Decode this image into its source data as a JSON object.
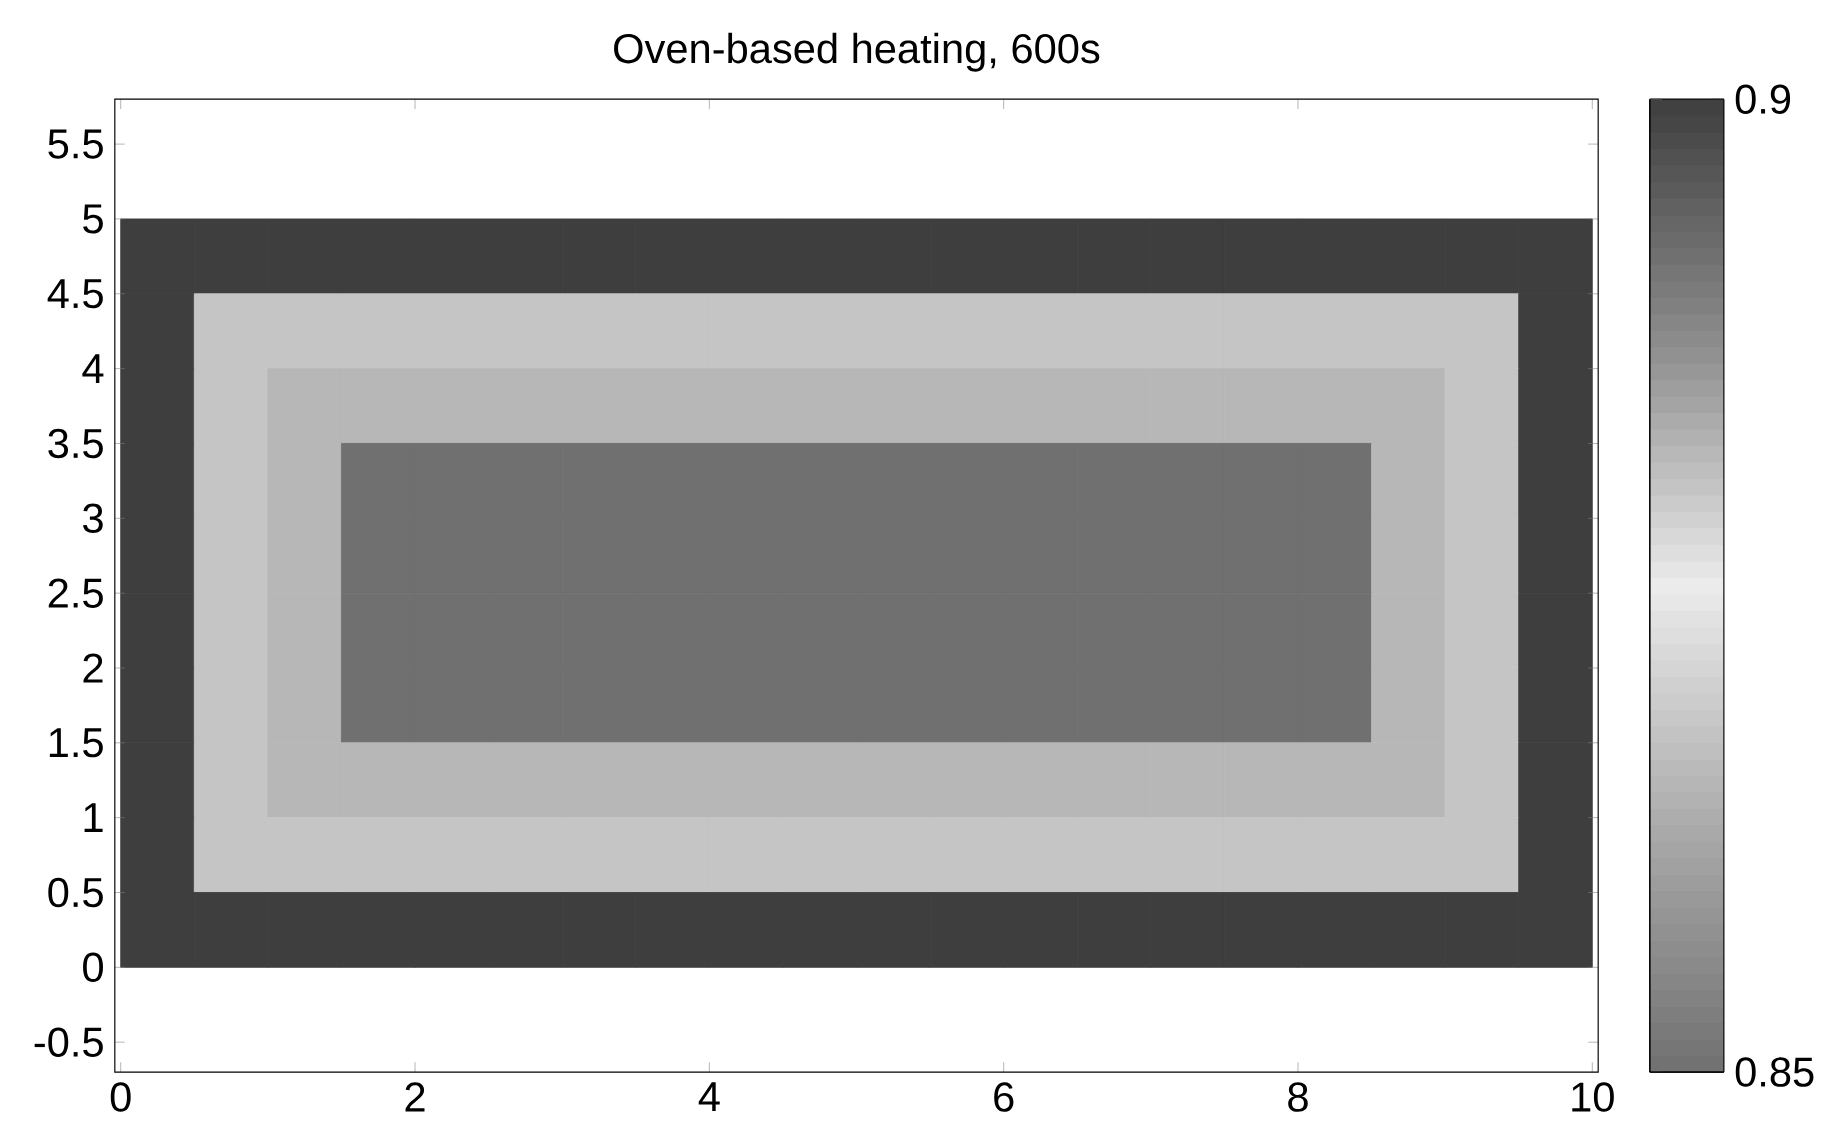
{
  "chart_data": {
    "type": "heatmap",
    "title": "Oven-based heating, 600s",
    "x": [
      0.25,
      0.75,
      1.25,
      1.75,
      2.25,
      2.75,
      3.25,
      3.75,
      4.25,
      4.75,
      5.25,
      5.75,
      6.25,
      6.75,
      7.25,
      7.75,
      8.25,
      8.75,
      9.25,
      9.75
    ],
    "y": [
      4.75,
      4.25,
      3.75,
      3.25,
      2.75,
      2.25,
      1.75,
      1.25,
      0.75,
      0.25
    ],
    "cells": [
      [
        0.9,
        0.9,
        0.9,
        0.9,
        0.9,
        0.9,
        0.9,
        0.9,
        0.9,
        0.9,
        0.9,
        0.9,
        0.9,
        0.9,
        0.9,
        0.9,
        0.9,
        0.9,
        0.9,
        0.9
      ],
      [
        0.9,
        0.88,
        0.88,
        0.88,
        0.88,
        0.88,
        0.88,
        0.88,
        0.88,
        0.88,
        0.88,
        0.88,
        0.88,
        0.88,
        0.88,
        0.88,
        0.88,
        0.88,
        0.88,
        0.9
      ],
      [
        0.9,
        0.88,
        0.865,
        0.865,
        0.865,
        0.865,
        0.865,
        0.865,
        0.865,
        0.865,
        0.865,
        0.865,
        0.865,
        0.865,
        0.865,
        0.865,
        0.865,
        0.865,
        0.88,
        0.9
      ],
      [
        0.9,
        0.88,
        0.865,
        0.85,
        0.85,
        0.85,
        0.85,
        0.85,
        0.85,
        0.85,
        0.85,
        0.85,
        0.85,
        0.85,
        0.85,
        0.85,
        0.85,
        0.865,
        0.88,
        0.9
      ],
      [
        0.9,
        0.88,
        0.865,
        0.85,
        0.85,
        0.85,
        0.85,
        0.85,
        0.85,
        0.85,
        0.85,
        0.85,
        0.85,
        0.85,
        0.85,
        0.85,
        0.85,
        0.865,
        0.88,
        0.9
      ],
      [
        0.9,
        0.88,
        0.865,
        0.85,
        0.85,
        0.85,
        0.85,
        0.85,
        0.85,
        0.85,
        0.85,
        0.85,
        0.85,
        0.85,
        0.85,
        0.85,
        0.85,
        0.865,
        0.88,
        0.9
      ],
      [
        0.9,
        0.88,
        0.865,
        0.85,
        0.85,
        0.85,
        0.85,
        0.85,
        0.85,
        0.85,
        0.85,
        0.85,
        0.85,
        0.85,
        0.85,
        0.85,
        0.85,
        0.865,
        0.88,
        0.9
      ],
      [
        0.9,
        0.88,
        0.865,
        0.865,
        0.865,
        0.865,
        0.865,
        0.865,
        0.865,
        0.865,
        0.865,
        0.865,
        0.865,
        0.865,
        0.865,
        0.865,
        0.865,
        0.865,
        0.88,
        0.9
      ],
      [
        0.9,
        0.88,
        0.88,
        0.88,
        0.88,
        0.88,
        0.88,
        0.88,
        0.88,
        0.88,
        0.88,
        0.88,
        0.88,
        0.88,
        0.88,
        0.88,
        0.88,
        0.88,
        0.88,
        0.9
      ],
      [
        0.9,
        0.9,
        0.9,
        0.9,
        0.9,
        0.9,
        0.9,
        0.9,
        0.9,
        0.9,
        0.9,
        0.9,
        0.9,
        0.9,
        0.9,
        0.9,
        0.9,
        0.9,
        0.9,
        0.9
      ]
    ],
    "clim": [
      0.85,
      0.9
    ],
    "cticks": [
      0.85,
      0.9
    ],
    "xlim": [
      -0.04,
      10.04
    ],
    "xticks": [
      0,
      2,
      4,
      6,
      8,
      10
    ],
    "ylim": [
      -0.7,
      5.8
    ],
    "yticks": [
      -0.5,
      0,
      0.5,
      1,
      1.5,
      2,
      2.5,
      3,
      3.5,
      4,
      4.5,
      5,
      5.5
    ],
    "grid": false
  }
}
